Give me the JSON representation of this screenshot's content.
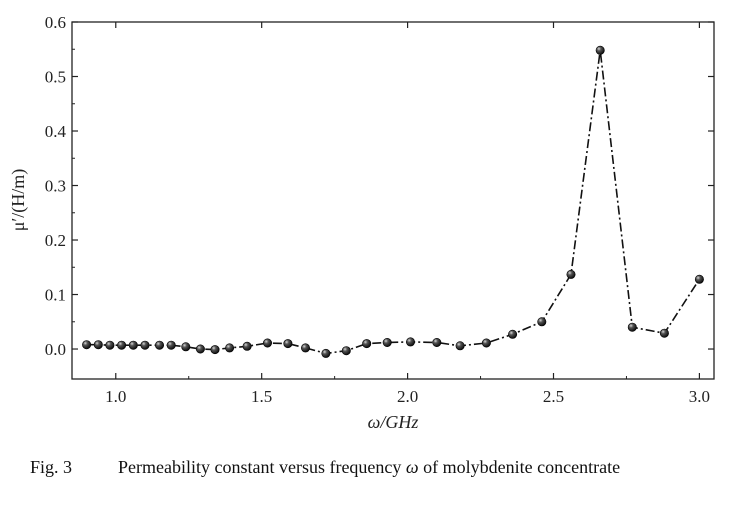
{
  "chart_data": {
    "type": "line",
    "xlabel": "ω/GHz",
    "ylabel": "μ′/(H/m)",
    "xlim": [
      0.85,
      3.05
    ],
    "ylim": [
      -0.055,
      0.6
    ],
    "xticks": [
      1.0,
      1.5,
      2.0,
      2.5,
      3.0
    ],
    "xtick_labels": [
      "1.0",
      "1.5",
      "2.0",
      "2.5",
      "3.0"
    ],
    "yticks": [
      0.0,
      0.1,
      0.2,
      0.3,
      0.4,
      0.5,
      0.6
    ],
    "ytick_labels": [
      "0.0",
      "0.1",
      "0.2",
      "0.3",
      "0.4",
      "0.5",
      "0.6"
    ],
    "grid": false,
    "legend": "none",
    "line_style": "dash-dot",
    "marker": "sphere",
    "color": "#111111",
    "series": [
      {
        "x": [
          0.9,
          0.94,
          0.98,
          1.02,
          1.06,
          1.1,
          1.15,
          1.19,
          1.24,
          1.29,
          1.34,
          1.39,
          1.45,
          1.52,
          1.59,
          1.65,
          1.72,
          1.79,
          1.86,
          1.93,
          2.01,
          2.1,
          2.18,
          2.27,
          2.36,
          2.46,
          2.56,
          2.66,
          2.77,
          2.88,
          3.0
        ],
        "y": [
          0.008,
          0.008,
          0.007,
          0.007,
          0.007,
          0.007,
          0.007,
          0.007,
          0.004,
          0.0,
          -0.001,
          0.002,
          0.005,
          0.011,
          0.01,
          0.002,
          -0.008,
          -0.003,
          0.01,
          0.012,
          0.013,
          0.012,
          0.006,
          0.011,
          0.027,
          0.05,
          0.137,
          0.548,
          0.04,
          0.029,
          0.128
        ]
      }
    ]
  },
  "caption": {
    "number": "Fig. 3",
    "text_prefix": "Permeability constant versus frequency ",
    "symbol": "ω",
    "text_suffix": " of molybdenite concentrate"
  }
}
